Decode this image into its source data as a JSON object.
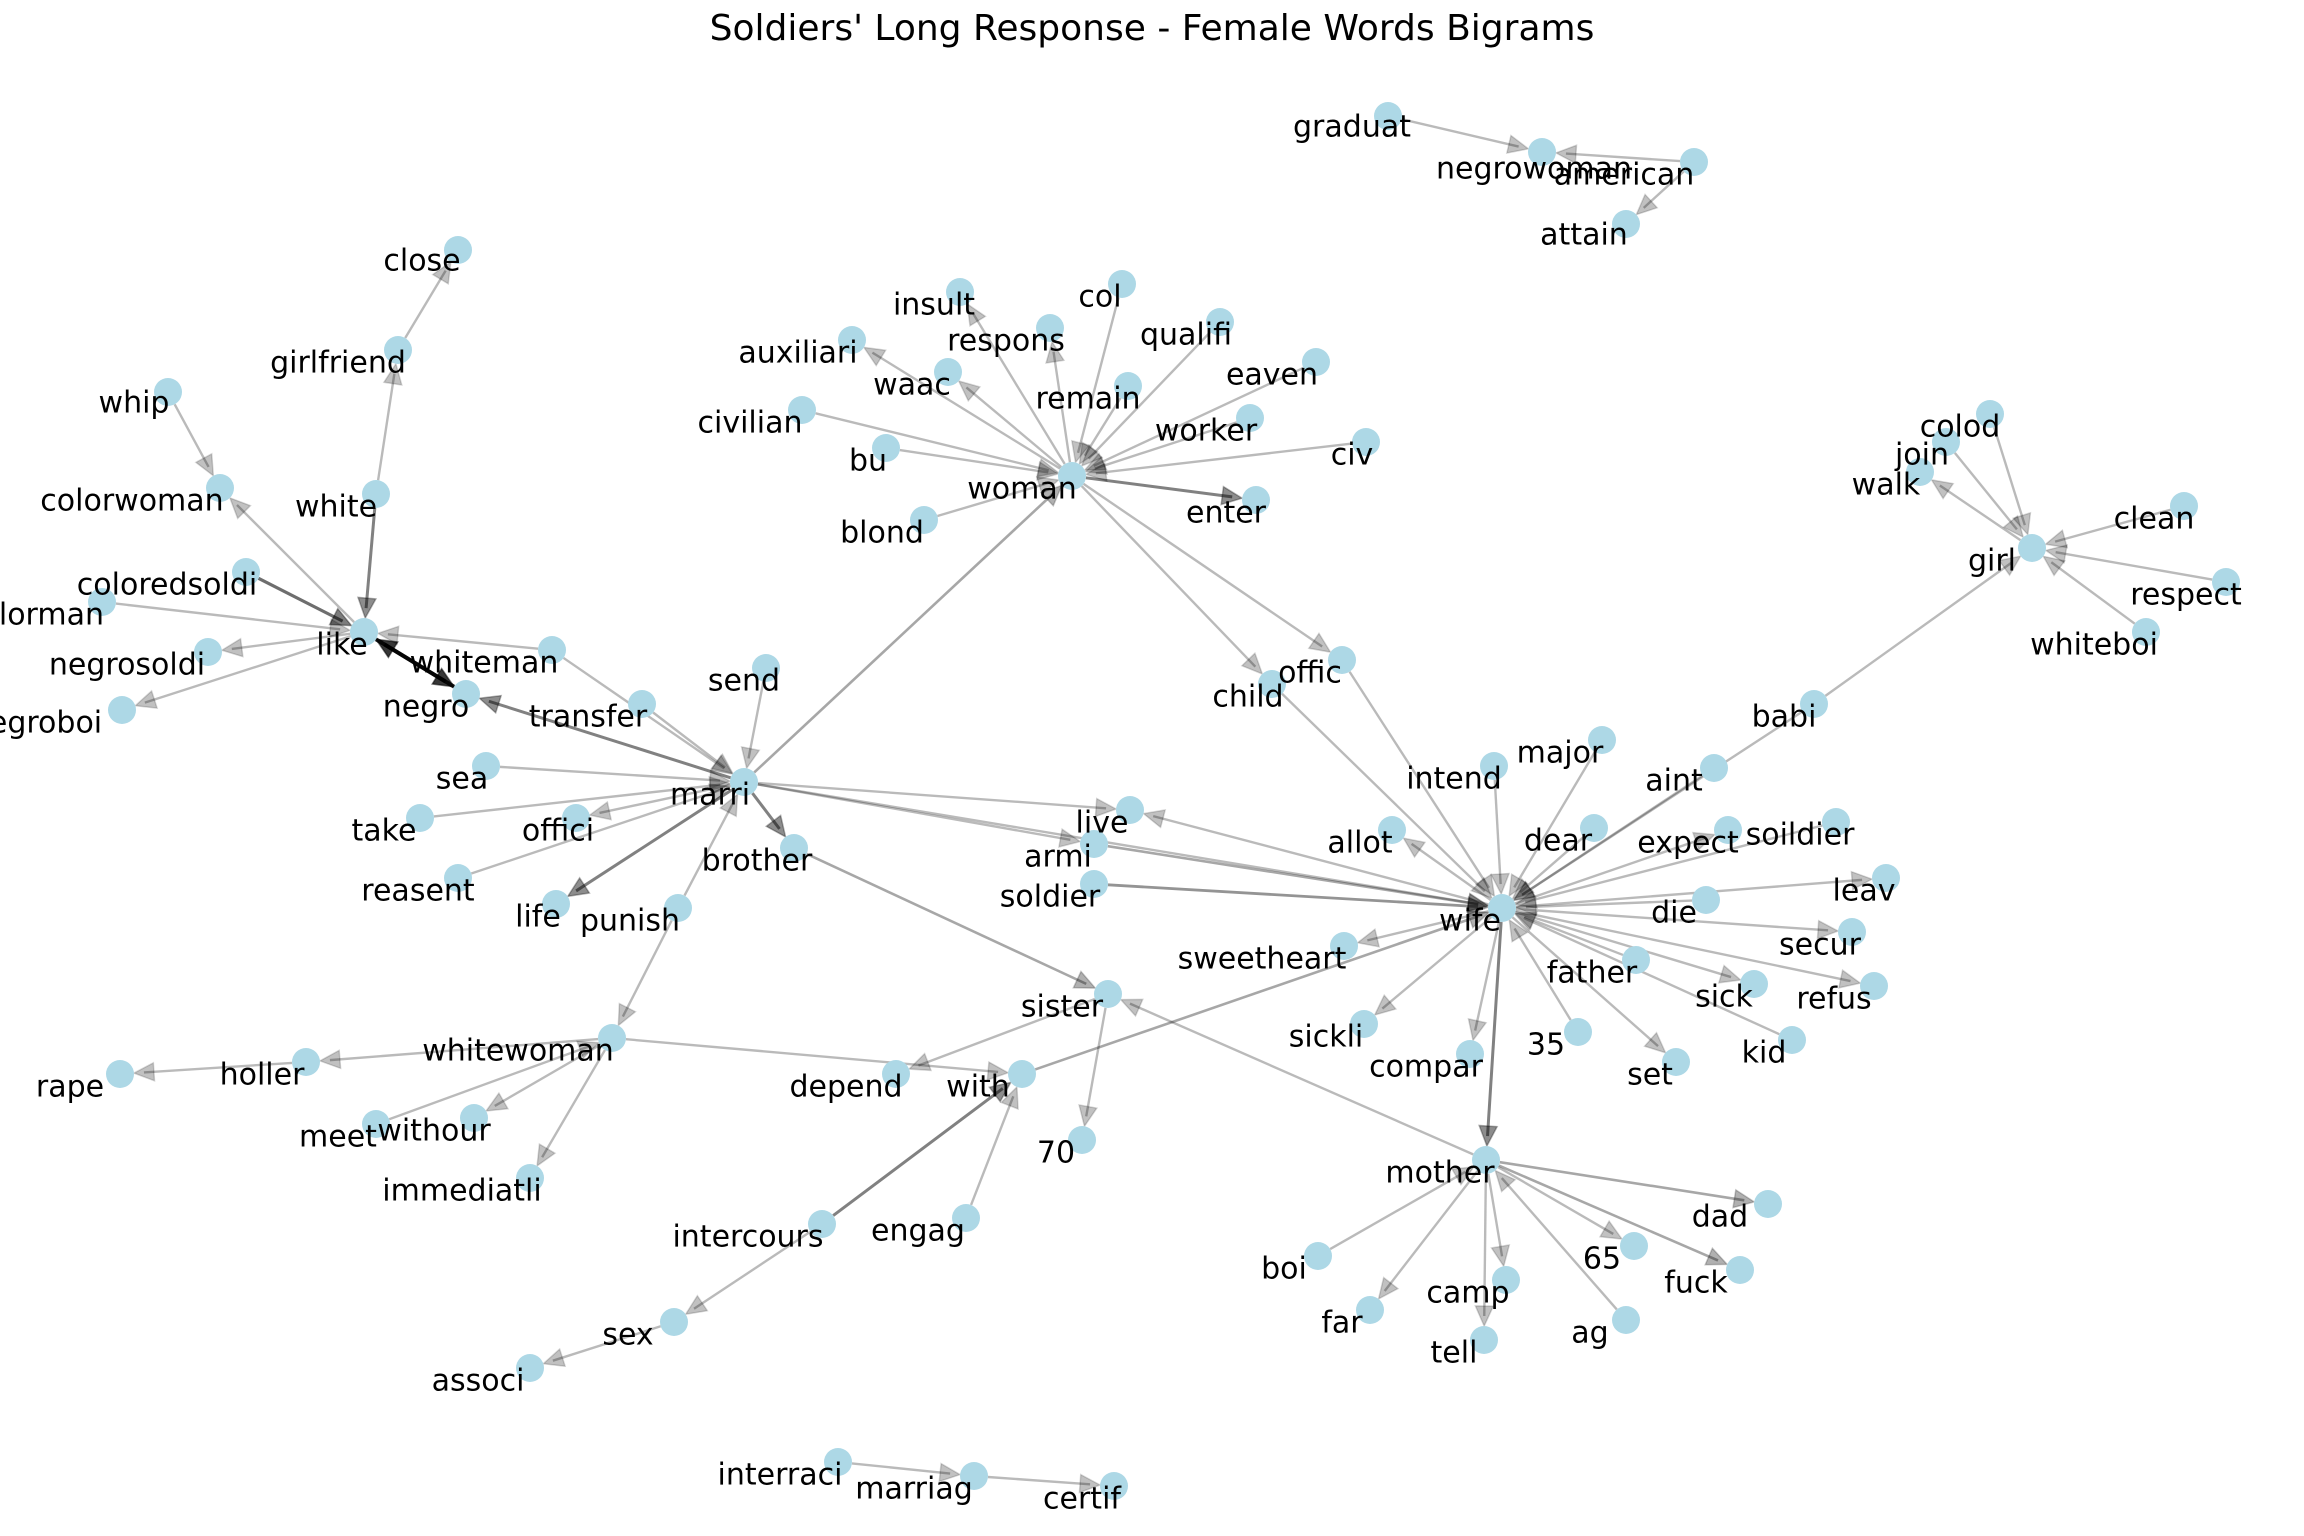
{
  "title": "Soldiers' Long Response - Female Words Bigrams",
  "colors": {
    "node": "#add8e6",
    "edge": "#000000",
    "label": "#000000"
  },
  "nodes": [
    "graduat",
    "negrowoman",
    "american",
    "attain",
    "close",
    "girlfriend",
    "whip",
    "colorwoman",
    "white",
    "coloredsoldi",
    "colorman",
    "like",
    "negrosoldi",
    "negroboi",
    "whiteman",
    "negro",
    "transfer",
    "send",
    "sea",
    "take",
    "offici",
    "reasent",
    "life",
    "marri",
    "punish",
    "brother",
    "woman",
    "insult",
    "col",
    "auxiliari",
    "respons",
    "qualifi",
    "waac",
    "remain",
    "eaven",
    "civilian",
    "worker",
    "bu",
    "civ",
    "enter",
    "blond",
    "offic",
    "child",
    "colod",
    "join",
    "walk",
    "clean",
    "girl",
    "respect",
    "whiteboi",
    "babi",
    "intend",
    "major",
    "aint",
    "dear",
    "expect",
    "soildier",
    "allot",
    "live",
    "armi",
    "soldier",
    "leav",
    "die",
    "wife",
    "secur",
    "sweetheart",
    "father",
    "refus",
    "sick",
    "sister",
    "kid",
    "sickli",
    "compar",
    "35",
    "set",
    "whitewoman",
    "holler",
    "rape",
    "depend",
    "with",
    "withour",
    "meet",
    "70",
    "immediatli",
    "mother",
    "dad",
    "intercours",
    "engag",
    "65",
    "boi",
    "camp",
    "fuck",
    "far",
    "ag",
    "tell",
    "sex",
    "associ",
    "interraci",
    "marriag",
    "certif"
  ],
  "edges": [
    [
      "graduat",
      "negrowoman",
      0.2
    ],
    [
      "american",
      "negrowoman",
      0.2
    ],
    [
      "american",
      "attain",
      0.2
    ],
    [
      "girlfriend",
      "close",
      0.2
    ],
    [
      "white",
      "girlfriend",
      0.2
    ],
    [
      "whip",
      "colorwoman",
      0.2
    ],
    [
      "like",
      "colorwoman",
      0.2
    ],
    [
      "white",
      "like",
      0.5
    ],
    [
      "coloredsoldi",
      "like",
      0.6
    ],
    [
      "colorman",
      "like",
      0.2
    ],
    [
      "like",
      "negrosoldi",
      0.2
    ],
    [
      "like",
      "negroboi",
      0.2
    ],
    [
      "whiteman",
      "like",
      0.2
    ],
    [
      "negro",
      "like",
      1.0
    ],
    [
      "like",
      "negro",
      1.0
    ],
    [
      "marri",
      "negro",
      0.5
    ],
    [
      "transfer",
      "marri",
      0.2
    ],
    [
      "send",
      "marri",
      0.2
    ],
    [
      "sea",
      "marri",
      0.2
    ],
    [
      "take",
      "marri",
      0.2
    ],
    [
      "marri",
      "offici",
      0.2
    ],
    [
      "reasent",
      "marri",
      0.2
    ],
    [
      "marri",
      "life",
      0.5
    ],
    [
      "punish",
      "marri",
      0.2
    ],
    [
      "marri",
      "brother",
      0.5
    ],
    [
      "marri",
      "woman",
      0.3
    ],
    [
      "marri",
      "live",
      0.2
    ],
    [
      "marri",
      "armi",
      0.2
    ],
    [
      "marri",
      "wife",
      0.2
    ],
    [
      "whiteman",
      "marri",
      0.2
    ],
    [
      "woman",
      "insult",
      0.2
    ],
    [
      "col",
      "woman",
      0.2
    ],
    [
      "woman",
      "auxiliari",
      0.2
    ],
    [
      "woman",
      "respons",
      0.2
    ],
    [
      "qualifi",
      "woman",
      0.2
    ],
    [
      "woman",
      "waac",
      0.2
    ],
    [
      "remain",
      "woman",
      0.2
    ],
    [
      "eaven",
      "woman",
      0.2
    ],
    [
      "civilian",
      "woman",
      0.2
    ],
    [
      "worker",
      "woman",
      0.2
    ],
    [
      "bu",
      "woman",
      0.2
    ],
    [
      "civ",
      "woman",
      0.2
    ],
    [
      "woman",
      "enter",
      0.5
    ],
    [
      "blond",
      "woman",
      0.2
    ],
    [
      "woman",
      "offic",
      0.2
    ],
    [
      "woman",
      "child",
      0.2
    ],
    [
      "colod",
      "girl",
      0.2
    ],
    [
      "join",
      "girl",
      0.2
    ],
    [
      "girl",
      "walk",
      0.2
    ],
    [
      "clean",
      "girl",
      0.2
    ],
    [
      "respect",
      "girl",
      0.2
    ],
    [
      "whiteboi",
      "girl",
      0.2
    ],
    [
      "babi",
      "girl",
      0.2
    ],
    [
      "babi",
      "wife",
      0.2
    ],
    [
      "intend",
      "wife",
      0.2
    ],
    [
      "major",
      "wife",
      0.2
    ],
    [
      "aint",
      "wife",
      0.2
    ],
    [
      "dear",
      "wife",
      0.2
    ],
    [
      "wife",
      "expect",
      0.2
    ],
    [
      "soildier",
      "wife",
      0.2
    ],
    [
      "wife",
      "allot",
      0.2
    ],
    [
      "wife",
      "live",
      0.2
    ],
    [
      "armi",
      "wife",
      0.3
    ],
    [
      "soldier",
      "wife",
      0.4
    ],
    [
      "wife",
      "leav",
      0.2
    ],
    [
      "die",
      "wife",
      0.2
    ],
    [
      "wife",
      "secur",
      0.2
    ],
    [
      "wife",
      "sweetheart",
      0.2
    ],
    [
      "father",
      "wife",
      0.2
    ],
    [
      "wife",
      "refus",
      0.2
    ],
    [
      "wife",
      "sick",
      0.2
    ],
    [
      "kid",
      "wife",
      0.2
    ],
    [
      "wife",
      "sickli",
      0.2
    ],
    [
      "wife",
      "compar",
      0.2
    ],
    [
      "35",
      "wife",
      0.2
    ],
    [
      "wife",
      "set",
      0.2
    ],
    [
      "offic",
      "wife",
      0.2
    ],
    [
      "child",
      "wife",
      0.2
    ],
    [
      "wife",
      "mother",
      0.5
    ],
    [
      "with",
      "wife",
      0.3
    ],
    [
      "brother",
      "sister",
      0.3
    ],
    [
      "sister",
      "70",
      0.2
    ],
    [
      "sister",
      "depend",
      0.2
    ],
    [
      "mother",
      "sister",
      0.2
    ],
    [
      "punish",
      "whitewoman",
      0.2
    ],
    [
      "whitewoman",
      "holler",
      0.2
    ],
    [
      "holler",
      "rape",
      0.2
    ],
    [
      "whitewoman",
      "with",
      0.2
    ],
    [
      "whitewoman",
      "withour",
      0.2
    ],
    [
      "meet",
      "whitewoman",
      0.2
    ],
    [
      "whitewoman",
      "immediatli",
      0.2
    ],
    [
      "intercours",
      "with",
      0.5
    ],
    [
      "engag",
      "with",
      0.2
    ],
    [
      "intercours",
      "sex",
      0.2
    ],
    [
      "sex",
      "associ",
      0.2
    ],
    [
      "mother",
      "dad",
      0.3
    ],
    [
      "mother",
      "65",
      0.2
    ],
    [
      "boi",
      "mother",
      0.2
    ],
    [
      "mother",
      "camp",
      0.2
    ],
    [
      "mother",
      "fuck",
      0.3
    ],
    [
      "mother",
      "far",
      0.2
    ],
    [
      "ag",
      "mother",
      0.2
    ],
    [
      "mother",
      "tell",
      0.2
    ],
    [
      "interraci",
      "marriag",
      0.2
    ],
    [
      "marriag",
      "certif",
      0.2
    ]
  ]
}
